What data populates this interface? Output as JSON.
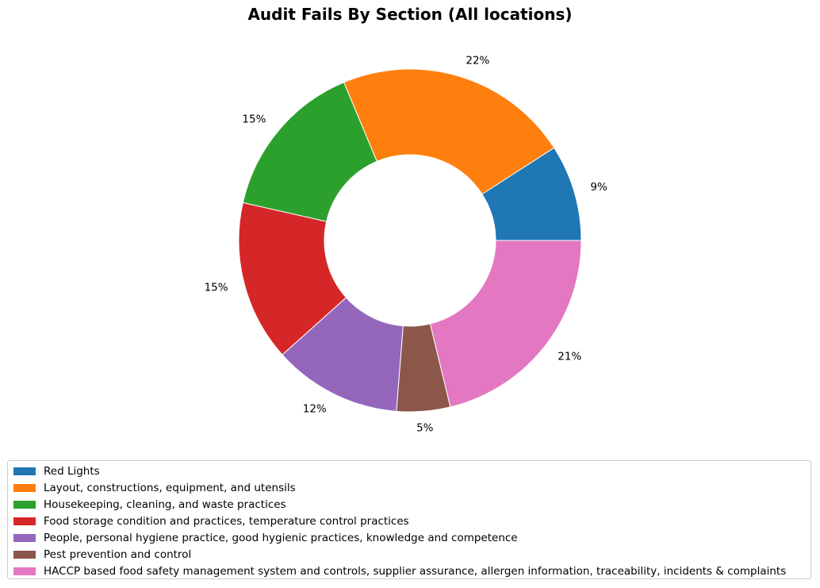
{
  "chart_data": {
    "type": "pie",
    "title": "Audit Fails By Section (All locations)",
    "style": "donut",
    "start_angle_deg": 0,
    "direction": "counterclockwise",
    "slices": [
      {
        "label": "Red Lights",
        "value": 9,
        "display": "9%",
        "color": "#1f77b4"
      },
      {
        "label": "Layout, constructions, equipment, and utensils",
        "value": 22,
        "display": "22%",
        "color": "#ff7f0e"
      },
      {
        "label": "Housekeeping, cleaning, and waste practices",
        "value": 15,
        "display": "15%",
        "color": "#2ca02c"
      },
      {
        "label": "Food storage condition and practices, temperature control practices",
        "value": 15,
        "display": "15%",
        "color": "#d62728"
      },
      {
        "label": "People, personal hygiene practice, good hygienic practices, knowledge and competence",
        "value": 12,
        "display": "12%",
        "color": "#9467bd"
      },
      {
        "label": "Pest prevention and control",
        "value": 5,
        "display": "5%",
        "color": "#8c564b"
      },
      {
        "label": "HACCP based food safety management system and controls, supplier assurance, allergen information, traceability, incidents & complaints",
        "value": 21,
        "display": "21%",
        "color": "#e377c2"
      }
    ],
    "legend_position": "bottom"
  }
}
